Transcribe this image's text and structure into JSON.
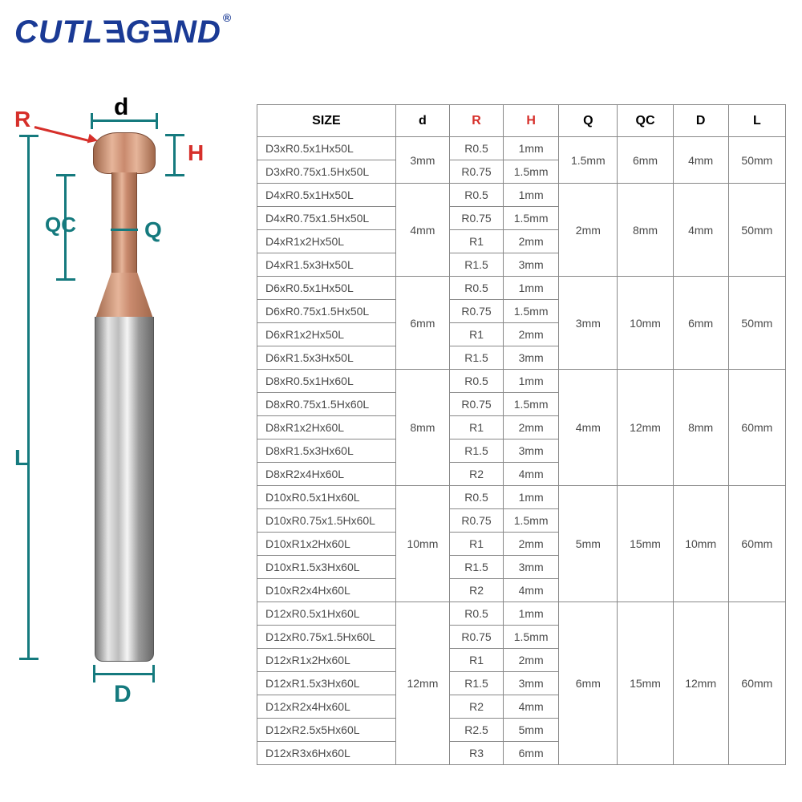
{
  "logo_text": "CUTLEGEND",
  "logo_reg": "®",
  "labels": {
    "R": "R",
    "d": "d",
    "H": "H",
    "QC": "QC",
    "Q": "Q",
    "L": "L",
    "D": "D"
  },
  "table": {
    "headers": [
      "SIZE",
      "d",
      "R",
      "H",
      "Q",
      "QC",
      "D",
      "L"
    ],
    "header_red": [
      false,
      false,
      true,
      true,
      false,
      false,
      false,
      false
    ],
    "groups": [
      {
        "d": "3mm",
        "Q": "1.5mm",
        "QC": "6mm",
        "D": "4mm",
        "L": "50mm",
        "rows": [
          {
            "size": "D3xR0.5x1Hx50L",
            "R": "R0.5",
            "H": "1mm"
          },
          {
            "size": "D3xR0.75x1.5Hx50L",
            "R": "R0.75",
            "H": "1.5mm"
          }
        ]
      },
      {
        "d": "4mm",
        "Q": "2mm",
        "QC": "8mm",
        "D": "4mm",
        "L": "50mm",
        "rows": [
          {
            "size": "D4xR0.5x1Hx50L",
            "R": "R0.5",
            "H": "1mm"
          },
          {
            "size": "D4xR0.75x1.5Hx50L",
            "R": "R0.75",
            "H": "1.5mm"
          },
          {
            "size": "D4xR1x2Hx50L",
            "R": "R1",
            "H": "2mm"
          },
          {
            "size": "D4xR1.5x3Hx50L",
            "R": "R1.5",
            "H": "3mm"
          }
        ]
      },
      {
        "d": "6mm",
        "Q": "3mm",
        "QC": "10mm",
        "D": "6mm",
        "L": "50mm",
        "rows": [
          {
            "size": "D6xR0.5x1Hx50L",
            "R": "R0.5",
            "H": "1mm"
          },
          {
            "size": "D6xR0.75x1.5Hx50L",
            "R": "R0.75",
            "H": "1.5mm"
          },
          {
            "size": "D6xR1x2Hx50L",
            "R": "R1",
            "H": "2mm"
          },
          {
            "size": "D6xR1.5x3Hx50L",
            "R": "R1.5",
            "H": "3mm"
          }
        ]
      },
      {
        "d": "8mm",
        "Q": "4mm",
        "QC": "12mm",
        "D": "8mm",
        "L": "60mm",
        "rows": [
          {
            "size": "D8xR0.5x1Hx60L",
            "R": "R0.5",
            "H": "1mm"
          },
          {
            "size": "D8xR0.75x1.5Hx60L",
            "R": "R0.75",
            "H": "1.5mm"
          },
          {
            "size": "D8xR1x2Hx60L",
            "R": "R1",
            "H": "2mm"
          },
          {
            "size": "D8xR1.5x3Hx60L",
            "R": "R1.5",
            "H": "3mm"
          },
          {
            "size": "D8xR2x4Hx60L",
            "R": "R2",
            "H": "4mm"
          }
        ]
      },
      {
        "d": "10mm",
        "Q": "5mm",
        "QC": "15mm",
        "D": "10mm",
        "L": "60mm",
        "rows": [
          {
            "size": "D10xR0.5x1Hx60L",
            "R": "R0.5",
            "H": "1mm"
          },
          {
            "size": "D10xR0.75x1.5Hx60L",
            "R": "R0.75",
            "H": "1.5mm"
          },
          {
            "size": "D10xR1x2Hx60L",
            "R": "R1",
            "H": "2mm"
          },
          {
            "size": "D10xR1.5x3Hx60L",
            "R": "R1.5",
            "H": "3mm"
          },
          {
            "size": "D10xR2x4Hx60L",
            "R": "R2",
            "H": "4mm"
          }
        ]
      },
      {
        "d": "12mm",
        "Q": "6mm",
        "QC": "15mm",
        "D": "12mm",
        "L": "60mm",
        "rows": [
          {
            "size": "D12xR0.5x1Hx60L",
            "R": "R0.5",
            "H": "1mm"
          },
          {
            "size": "D12xR0.75x1.5Hx60L",
            "R": "R0.75",
            "H": "1.5mm"
          },
          {
            "size": "D12xR1x2Hx60L",
            "R": "R1",
            "H": "2mm"
          },
          {
            "size": "D12xR1.5x3Hx60L",
            "R": "R1.5",
            "H": "3mm"
          },
          {
            "size": "D12xR2x4Hx60L",
            "R": "R2",
            "H": "4mm"
          },
          {
            "size": "D12xR2.5x5Hx60L",
            "R": "R2.5",
            "H": "5mm"
          },
          {
            "size": "D12xR3x6Hx60L",
            "R": "R3",
            "H": "6mm"
          }
        ]
      }
    ]
  },
  "colors": {
    "brand": "#1a3a95",
    "red": "#d62f2a",
    "teal": "#157a7e",
    "border": "#888",
    "text": "#4a4a4a"
  }
}
